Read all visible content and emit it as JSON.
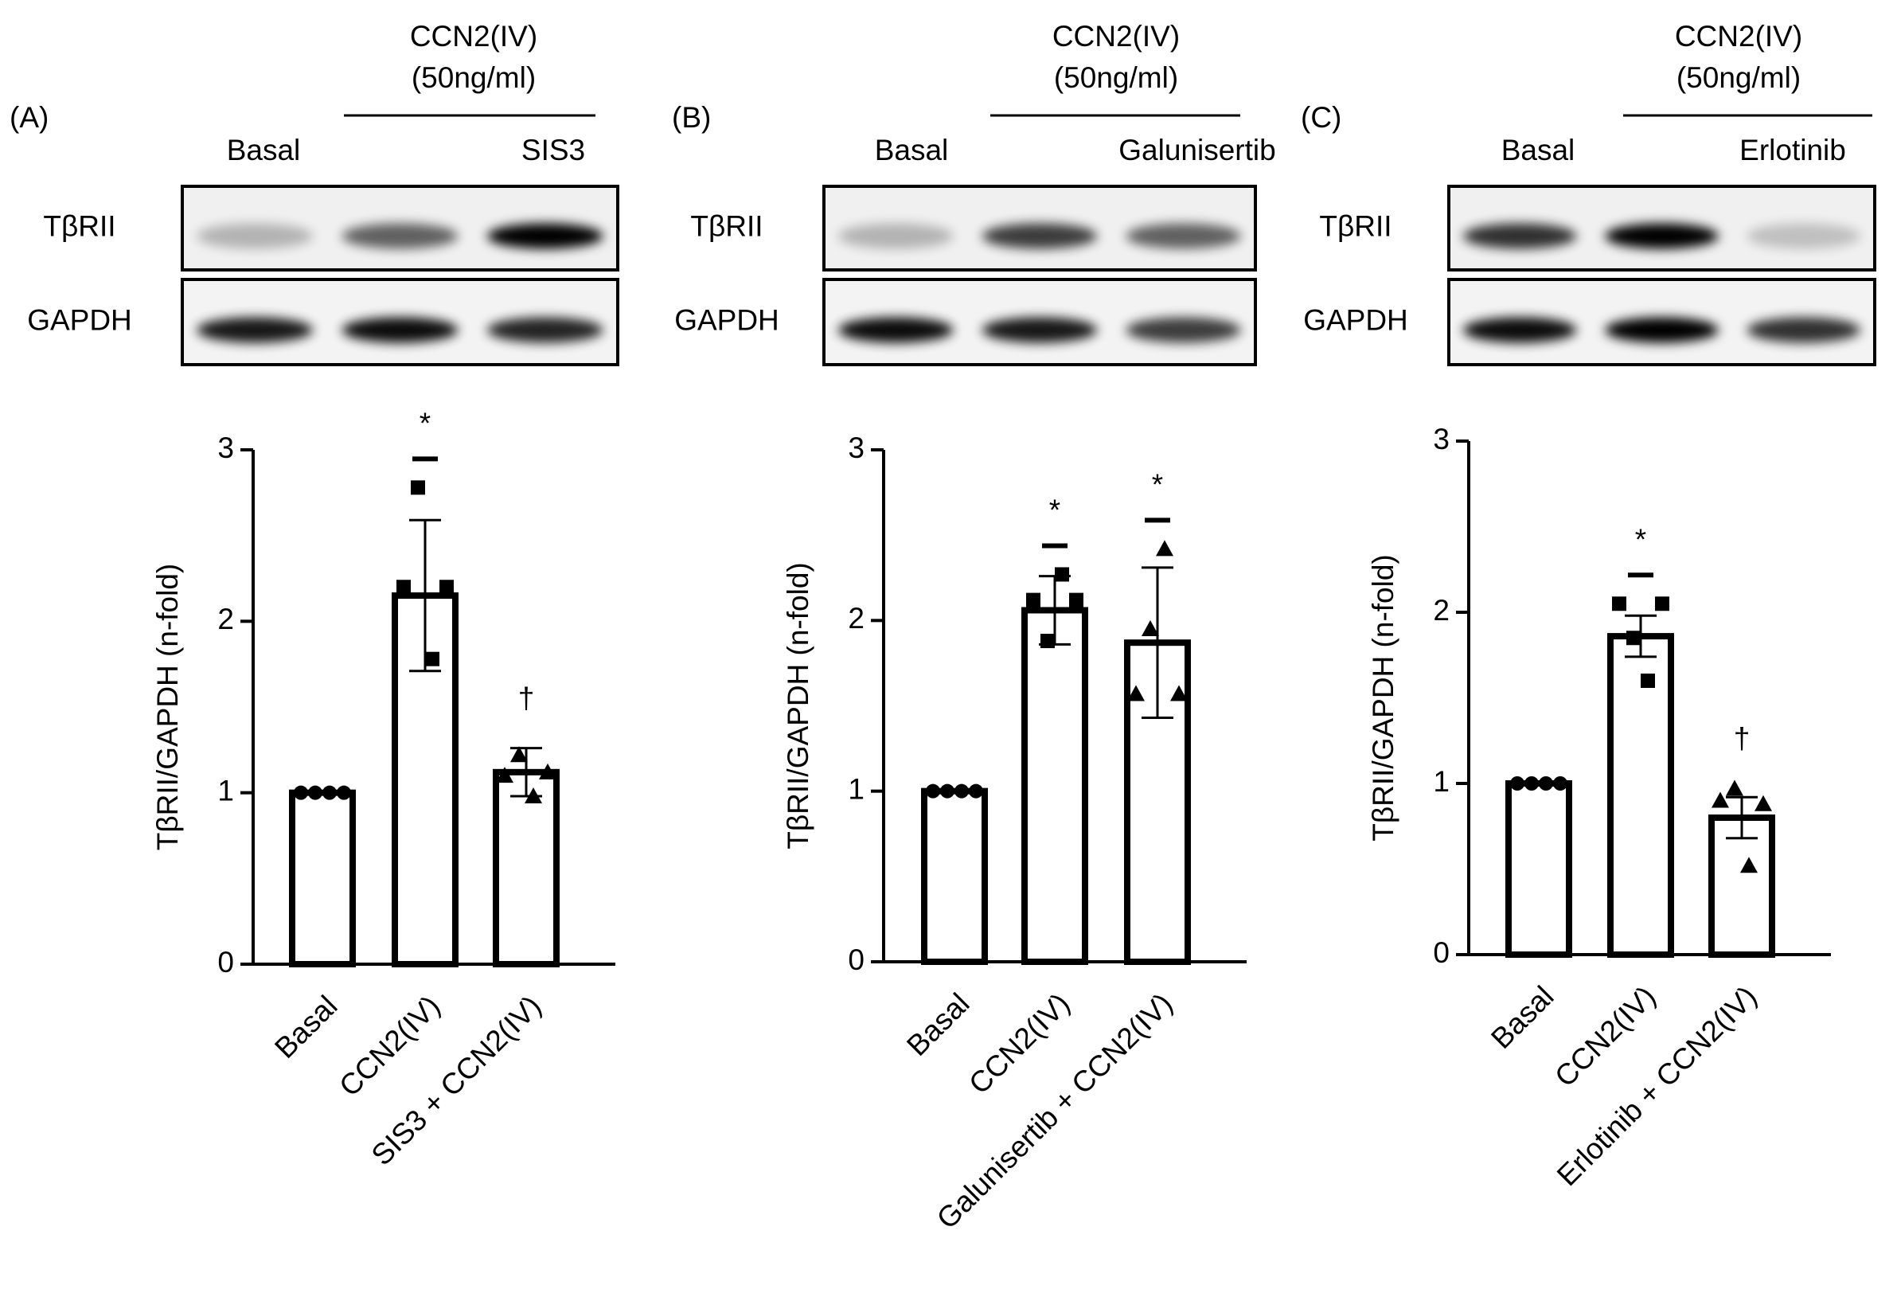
{
  "chart_data": [
    {
      "type": "bar",
      "panel": "(A)",
      "treatment": [
        "CCN2(IV)",
        "(50ng/ml)"
      ],
      "lanes": [
        "Basal",
        null,
        "SIS3"
      ],
      "blot_rows": [
        "TβRII",
        "GAPDH"
      ],
      "ylabel": "TβRII/GAPDH (n-fold)",
      "categories": [
        "Basal",
        "CCN2(IV)",
        "SIS3 + CCN2(IV)"
      ],
      "values": [
        1.0,
        2.15,
        1.12
      ],
      "errors": [
        0,
        0.44,
        0.14
      ],
      "points": [
        [
          1,
          1,
          1,
          1
        ],
        [
          2.2,
          2.78,
          1.78,
          2.2
        ],
        [
          1.1,
          1.22,
          0.98,
          1.12
        ]
      ],
      "markers": [
        "circle",
        "square",
        "triangle"
      ],
      "significance": [
        null,
        "*",
        "†"
      ],
      "ylim": [
        0,
        3
      ],
      "yticks": [
        0,
        1,
        2,
        3
      ],
      "color": "#ffffff"
    },
    {
      "type": "bar",
      "panel": "(B)",
      "treatment": [
        "CCN2(IV)",
        "(50ng/ml)"
      ],
      "lanes": [
        "Basal",
        null,
        "Galunisertib"
      ],
      "blot_rows": [
        "TβRII",
        "GAPDH"
      ],
      "ylabel": "TβRII/GAPDH (n-fold)",
      "categories": [
        "Basal",
        "CCN2(IV)",
        "Galunisertib + CCN2(IV)"
      ],
      "values": [
        1.0,
        2.06,
        1.87
      ],
      "errors": [
        0,
        0.2,
        0.44
      ],
      "points": [
        [
          1,
          1,
          1,
          1
        ],
        [
          2.12,
          1.88,
          2.27,
          2.12
        ],
        [
          1.57,
          1.95,
          2.42,
          1.57
        ]
      ],
      "markers": [
        "circle",
        "square",
        "triangle"
      ],
      "significance": [
        null,
        "*",
        "*"
      ],
      "ylim": [
        0,
        3
      ],
      "yticks": [
        0,
        1,
        2,
        3
      ],
      "color": "#ffffff"
    },
    {
      "type": "bar",
      "panel": "(C)",
      "treatment": [
        "CCN2(IV)",
        "(50ng/ml)"
      ],
      "lanes": [
        "Basal",
        null,
        "Erlotinib"
      ],
      "blot_rows": [
        "TβRII",
        "GAPDH"
      ],
      "ylabel": "TβRII/GAPDH (n-fold)",
      "categories": [
        "Basal",
        "CCN2(IV)",
        "Erlotinib + CCN2(IV)"
      ],
      "values": [
        1.0,
        1.86,
        0.8
      ],
      "errors": [
        0,
        0.12,
        0.12
      ],
      "points": [
        [
          1,
          1,
          1,
          1
        ],
        [
          2.05,
          1.85,
          1.6,
          2.05
        ],
        [
          0.9,
          0.97,
          0.52,
          0.88
        ]
      ],
      "markers": [
        "circle",
        "square",
        "triangle"
      ],
      "significance": [
        null,
        "*",
        "†"
      ],
      "ylim": [
        0,
        3
      ],
      "yticks": [
        0,
        1,
        2,
        3
      ],
      "color": "#ffffff"
    }
  ]
}
